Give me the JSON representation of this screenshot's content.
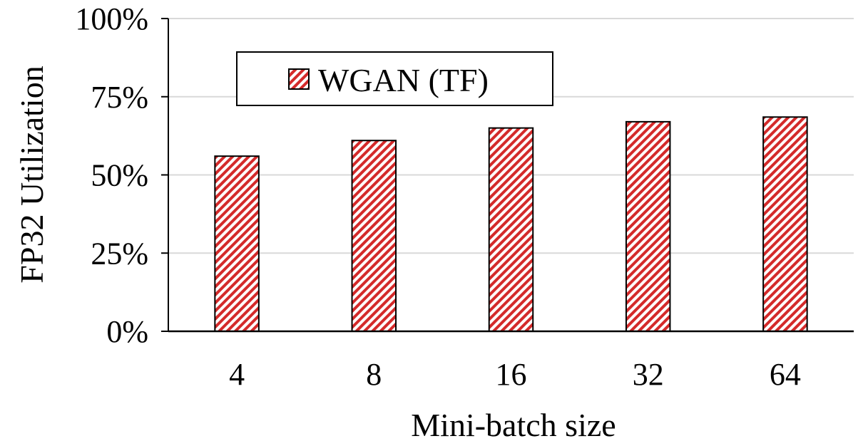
{
  "chart_data": {
    "type": "bar",
    "categories": [
      "4",
      "8",
      "16",
      "32",
      "64"
    ],
    "series": [
      {
        "name": "WGAN (TF)",
        "values": [
          56,
          61,
          65,
          67,
          68.5
        ]
      }
    ],
    "xlabel": "Mini-batch size",
    "ylabel": "FP32 Utilization",
    "ylim": [
      0,
      100
    ],
    "yticks": [
      0,
      25,
      50,
      75,
      100
    ],
    "ytick_labels": [
      "0%",
      "25%",
      "50%",
      "75%",
      "100%"
    ],
    "grid": "horizontal",
    "legend_position": "top-left",
    "bar_style": "diagonal-hatch",
    "colors": {
      "bar_hatch": "#d42a2a",
      "bar_fill": "#ffffff",
      "bar_edge": "#000000",
      "grid": "#d9d9d9",
      "axis": "#000000"
    }
  }
}
